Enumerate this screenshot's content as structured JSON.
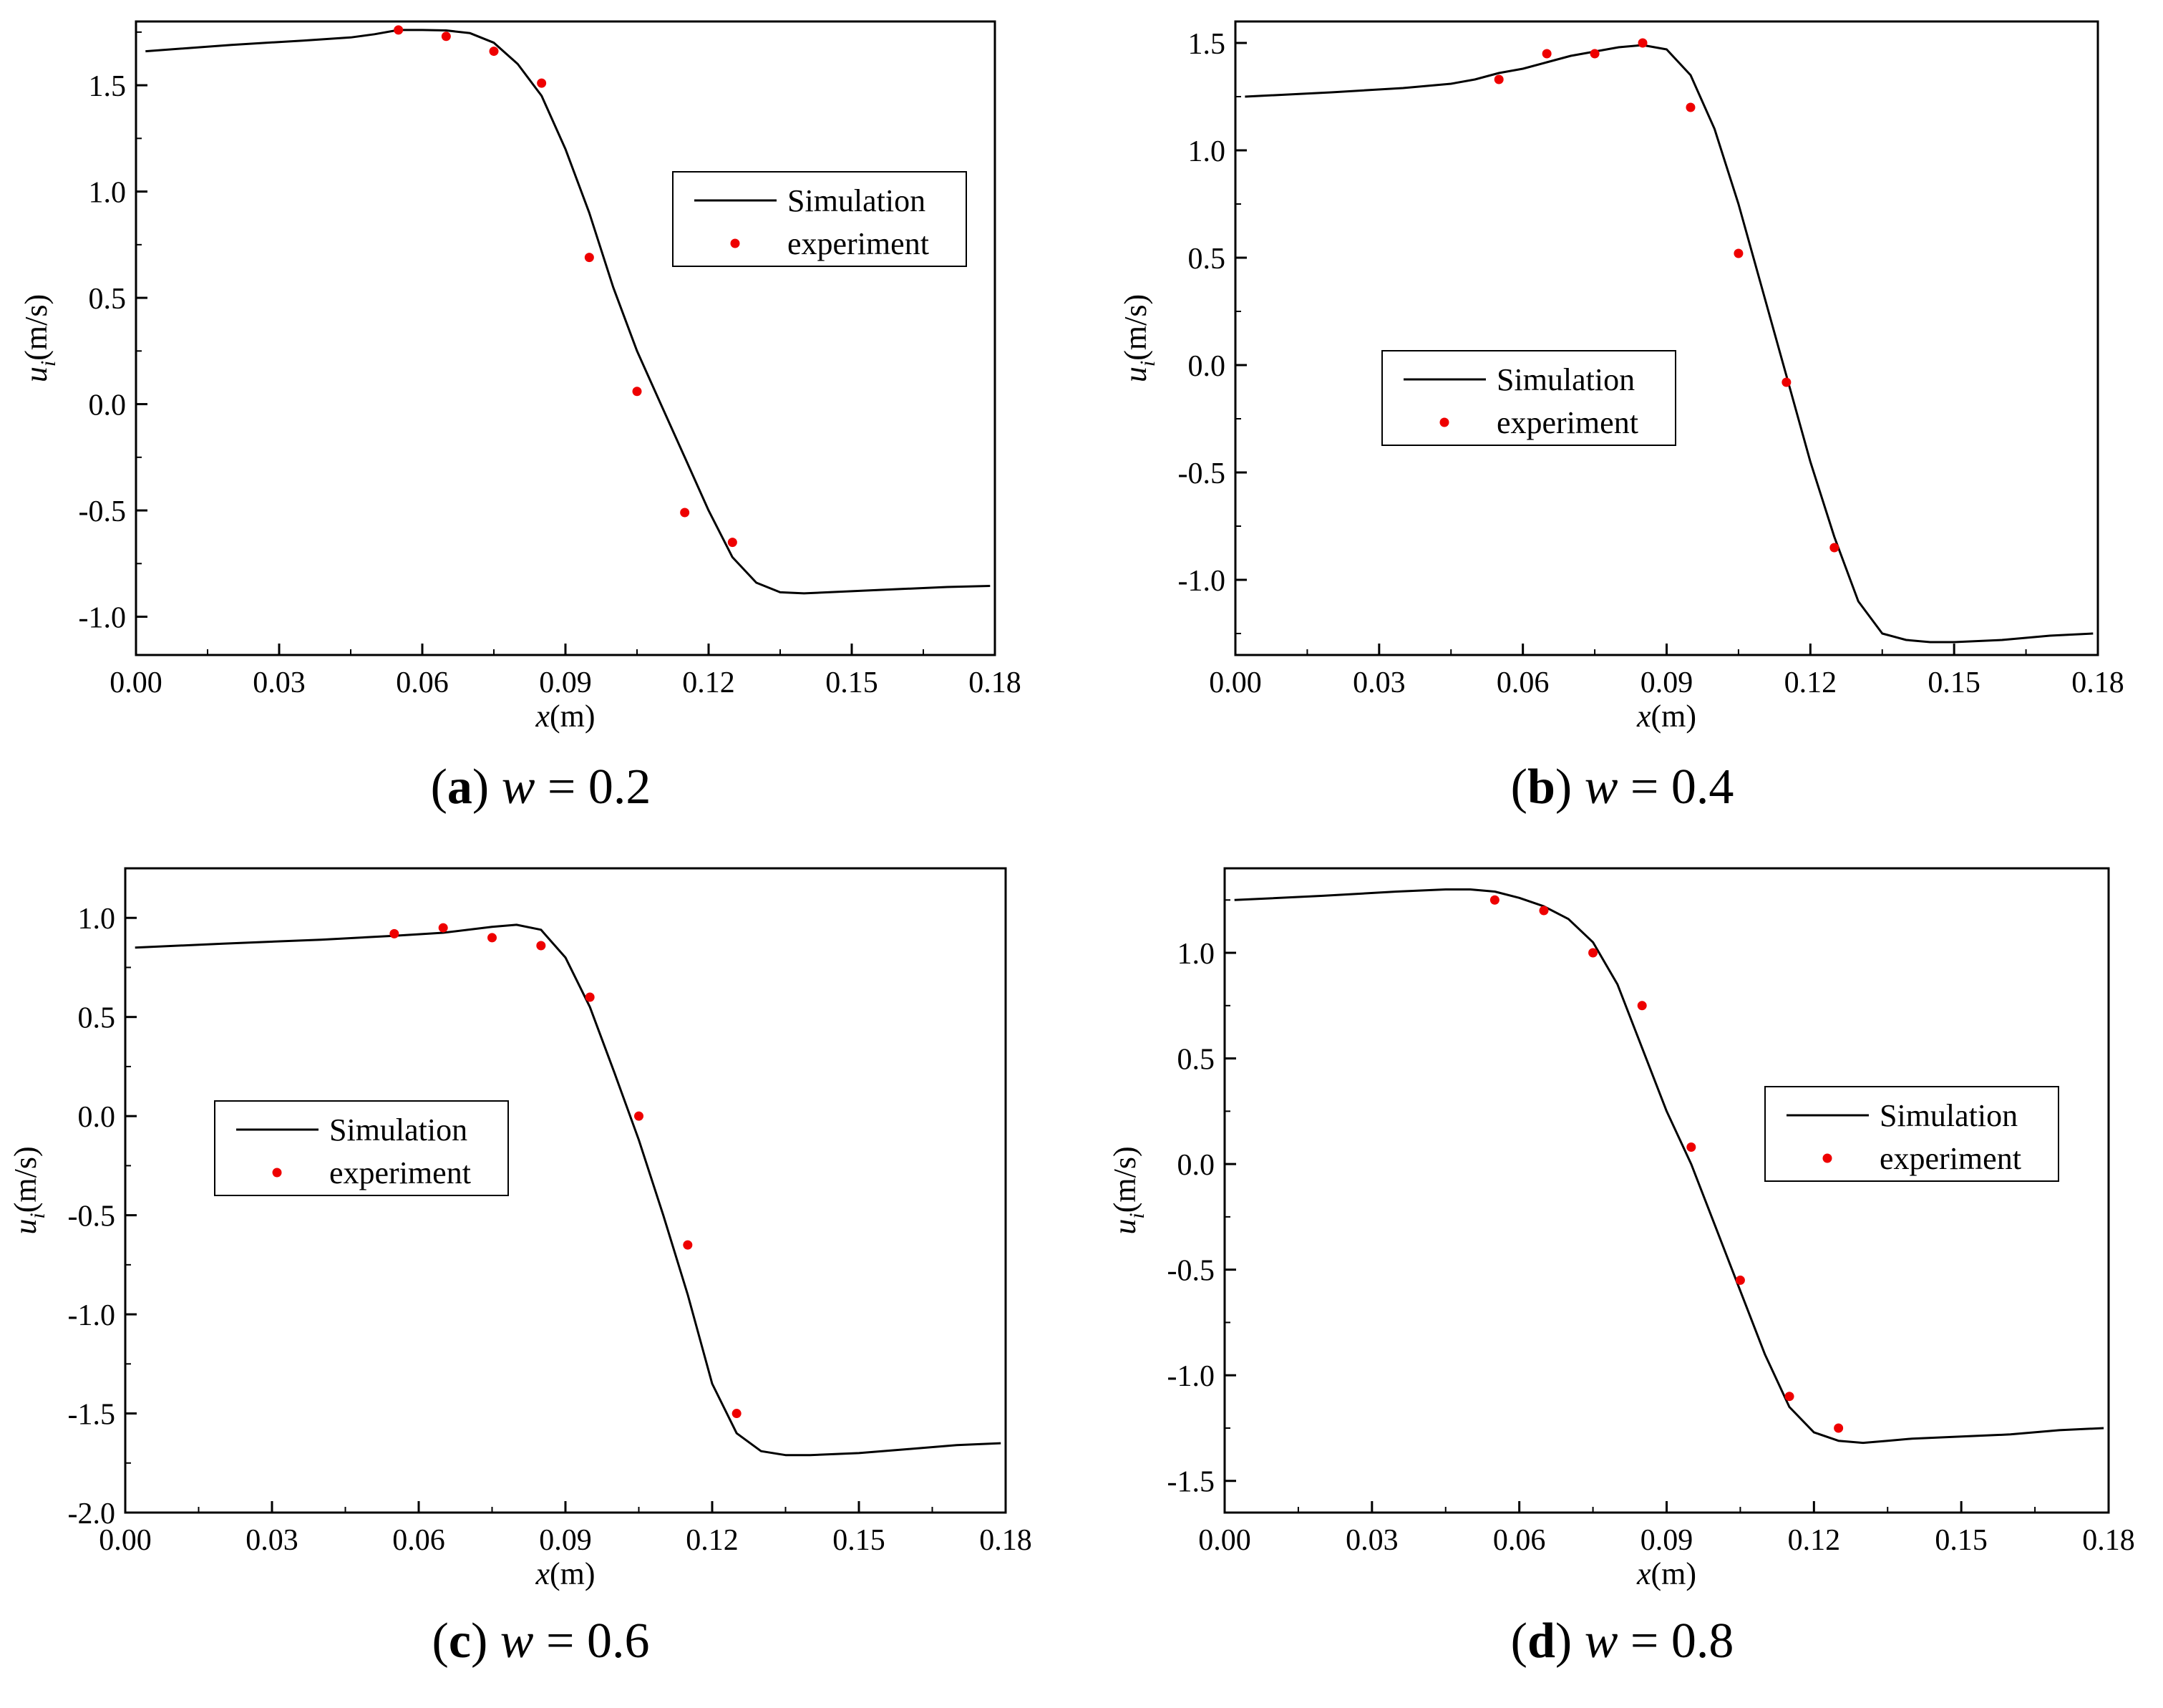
{
  "chart_data": [
    {
      "type": "line",
      "panel_label": "a",
      "subtitle_var": "w",
      "subtitle_eq": "=",
      "subtitle_value": "0.2",
      "xlabel_var": "x",
      "xlabel_unit": "(m)",
      "ylabel_var": "u",
      "ylabel_sub": "i",
      "ylabel_unit": "(m/s)",
      "xlim": [
        0.0,
        0.18
      ],
      "ylim": [
        -1.18,
        1.8
      ],
      "xticks": [
        0.0,
        0.03,
        0.06,
        0.09,
        0.12,
        0.15,
        0.18
      ],
      "xtick_labels": [
        "0.00",
        "0.03",
        "0.06",
        "0.09",
        "0.12",
        "0.15",
        "0.18"
      ],
      "yticks": [
        -1.0,
        -0.5,
        0.0,
        0.5,
        1.0,
        1.5
      ],
      "ytick_labels": [
        "-1.0",
        "-0.5",
        "0.0",
        "0.5",
        "1.0",
        "1.5"
      ],
      "legend": {
        "position": "upper-right",
        "line_label": "Simulation",
        "marker_label": "experiment"
      },
      "series": [
        {
          "name": "Simulation",
          "kind": "line",
          "color": "#000000",
          "x": [
            0.002,
            0.02,
            0.035,
            0.045,
            0.05,
            0.055,
            0.06,
            0.065,
            0.07,
            0.075,
            0.08,
            0.085,
            0.09,
            0.095,
            0.1,
            0.105,
            0.11,
            0.115,
            0.12,
            0.125,
            0.13,
            0.135,
            0.14,
            0.15,
            0.16,
            0.17,
            0.179
          ],
          "y": [
            1.66,
            1.69,
            1.71,
            1.725,
            1.74,
            1.76,
            1.76,
            1.758,
            1.745,
            1.7,
            1.6,
            1.45,
            1.2,
            0.9,
            0.55,
            0.25,
            0.0,
            -0.25,
            -0.5,
            -0.72,
            -0.84,
            -0.885,
            -0.89,
            -0.88,
            -0.87,
            -0.86,
            -0.855
          ]
        },
        {
          "name": "experiment",
          "kind": "scatter",
          "color": "#ee0000",
          "x": [
            0.055,
            0.065,
            0.075,
            0.085,
            0.095,
            0.105,
            0.115,
            0.125
          ],
          "y": [
            1.76,
            1.73,
            1.66,
            1.51,
            0.69,
            0.06,
            -0.51,
            -0.65
          ]
        }
      ]
    },
    {
      "type": "line",
      "panel_label": "b",
      "subtitle_var": "w",
      "subtitle_eq": "=",
      "subtitle_value": "0.4",
      "xlabel_var": "x",
      "xlabel_unit": "(m)",
      "ylabel_var": "u",
      "ylabel_sub": "i",
      "ylabel_unit": "(m/s)",
      "xlim": [
        0.0,
        0.18
      ],
      "ylim": [
        -1.35,
        1.6
      ],
      "xticks": [
        0.0,
        0.03,
        0.06,
        0.09,
        0.12,
        0.15,
        0.18
      ],
      "xtick_labels": [
        "0.00",
        "0.03",
        "0.06",
        "0.09",
        "0.12",
        "0.15",
        "0.18"
      ],
      "yticks": [
        -1.0,
        -0.5,
        0.0,
        0.5,
        1.0,
        1.5
      ],
      "ytick_labels": [
        "-1.0",
        "-0.5",
        "0.0",
        "0.5",
        "1.0",
        "1.5"
      ],
      "legend": {
        "position": "center-left",
        "line_label": "Simulation",
        "marker_label": "experiment"
      },
      "series": [
        {
          "name": "Simulation",
          "kind": "line",
          "color": "#000000",
          "x": [
            0.002,
            0.02,
            0.035,
            0.045,
            0.05,
            0.055,
            0.06,
            0.065,
            0.07,
            0.075,
            0.08,
            0.085,
            0.09,
            0.095,
            0.1,
            0.105,
            0.11,
            0.115,
            0.12,
            0.125,
            0.13,
            0.135,
            0.14,
            0.145,
            0.15,
            0.16,
            0.17,
            0.179
          ],
          "y": [
            1.25,
            1.27,
            1.29,
            1.31,
            1.33,
            1.36,
            1.38,
            1.41,
            1.44,
            1.46,
            1.48,
            1.49,
            1.47,
            1.35,
            1.1,
            0.75,
            0.35,
            -0.05,
            -0.45,
            -0.8,
            -1.1,
            -1.25,
            -1.28,
            -1.29,
            -1.29,
            -1.28,
            -1.26,
            -1.25
          ]
        },
        {
          "name": "experiment",
          "kind": "scatter",
          "color": "#ee0000",
          "x": [
            0.055,
            0.065,
            0.075,
            0.085,
            0.095,
            0.105,
            0.115,
            0.125
          ],
          "y": [
            1.33,
            1.45,
            1.45,
            1.5,
            1.2,
            0.52,
            -0.08,
            -0.85
          ]
        }
      ]
    },
    {
      "type": "line",
      "panel_label": "c",
      "subtitle_var": "w",
      "subtitle_eq": "=",
      "subtitle_value": "0.6",
      "xlabel_var": "x",
      "xlabel_unit": "(m)",
      "ylabel_var": "u",
      "ylabel_sub": "i",
      "ylabel_unit": "(m/s)",
      "xlim": [
        0.0,
        0.18
      ],
      "ylim": [
        -2.0,
        1.25
      ],
      "xticks": [
        0.0,
        0.03,
        0.06,
        0.09,
        0.12,
        0.15,
        0.18
      ],
      "xtick_labels": [
        "0.00",
        "0.03",
        "0.06",
        "0.09",
        "0.12",
        "0.15",
        "0.18"
      ],
      "yticks": [
        -2.0,
        -1.5,
        -1.0,
        -0.5,
        0.0,
        0.5,
        1.0
      ],
      "ytick_labels": [
        "-2.0",
        "-1.5",
        "-1.0",
        "-0.5",
        "0.0",
        "0.5",
        "1.0"
      ],
      "legend": {
        "position": "center-left",
        "line_label": "Simulation",
        "marker_label": "experiment"
      },
      "series": [
        {
          "name": "Simulation",
          "kind": "line",
          "color": "#000000",
          "x": [
            0.002,
            0.02,
            0.04,
            0.055,
            0.065,
            0.075,
            0.08,
            0.085,
            0.09,
            0.095,
            0.1,
            0.105,
            0.11,
            0.115,
            0.12,
            0.125,
            0.13,
            0.135,
            0.14,
            0.15,
            0.16,
            0.17,
            0.179
          ],
          "y": [
            0.85,
            0.87,
            0.89,
            0.91,
            0.925,
            0.955,
            0.965,
            0.94,
            0.8,
            0.55,
            0.22,
            -0.12,
            -0.5,
            -0.9,
            -1.35,
            -1.6,
            -1.69,
            -1.71,
            -1.71,
            -1.7,
            -1.68,
            -1.66,
            -1.65
          ]
        },
        {
          "name": "experiment",
          "kind": "scatter",
          "color": "#ee0000",
          "x": [
            0.055,
            0.065,
            0.075,
            0.085,
            0.095,
            0.105,
            0.115,
            0.125
          ],
          "y": [
            0.92,
            0.95,
            0.9,
            0.86,
            0.6,
            0.0,
            -0.65,
            -1.5
          ]
        }
      ]
    },
    {
      "type": "line",
      "panel_label": "d",
      "subtitle_var": "w",
      "subtitle_eq": "=",
      "subtitle_value": "0.8",
      "xlabel_var": "x",
      "xlabel_unit": "(m)",
      "ylabel_var": "u",
      "ylabel_sub": "i",
      "ylabel_unit": "(m/s)",
      "xlim": [
        0.0,
        0.18
      ],
      "ylim": [
        -1.65,
        1.4
      ],
      "xticks": [
        0.0,
        0.03,
        0.06,
        0.09,
        0.12,
        0.15,
        0.18
      ],
      "xtick_labels": [
        "0.00",
        "0.03",
        "0.06",
        "0.09",
        "0.12",
        "0.15",
        "0.18"
      ],
      "yticks": [
        -1.5,
        -1.0,
        -0.5,
        0.0,
        0.5,
        1.0
      ],
      "ytick_labels": [
        "-1.5",
        "-1.0",
        "-0.5",
        "0.0",
        "0.5",
        "1.0"
      ],
      "legend": {
        "position": "center-right",
        "line_label": "Simulation",
        "marker_label": "experiment"
      },
      "series": [
        {
          "name": "Simulation",
          "kind": "line",
          "color": "#000000",
          "x": [
            0.002,
            0.02,
            0.035,
            0.045,
            0.05,
            0.055,
            0.06,
            0.065,
            0.07,
            0.075,
            0.08,
            0.085,
            0.09,
            0.095,
            0.1,
            0.105,
            0.11,
            0.115,
            0.12,
            0.125,
            0.13,
            0.135,
            0.14,
            0.15,
            0.16,
            0.17,
            0.179
          ],
          "y": [
            1.25,
            1.27,
            1.29,
            1.3,
            1.3,
            1.29,
            1.26,
            1.22,
            1.16,
            1.05,
            0.85,
            0.55,
            0.25,
            0.0,
            -0.3,
            -0.6,
            -0.9,
            -1.15,
            -1.27,
            -1.31,
            -1.32,
            -1.31,
            -1.3,
            -1.29,
            -1.28,
            -1.26,
            -1.25
          ]
        },
        {
          "name": "experiment",
          "kind": "scatter",
          "color": "#ee0000",
          "x": [
            0.055,
            0.065,
            0.075,
            0.085,
            0.095,
            0.105,
            0.115,
            0.125
          ],
          "y": [
            1.25,
            1.2,
            1.0,
            0.75,
            0.08,
            -0.55,
            -1.1,
            -1.25
          ]
        }
      ]
    }
  ]
}
